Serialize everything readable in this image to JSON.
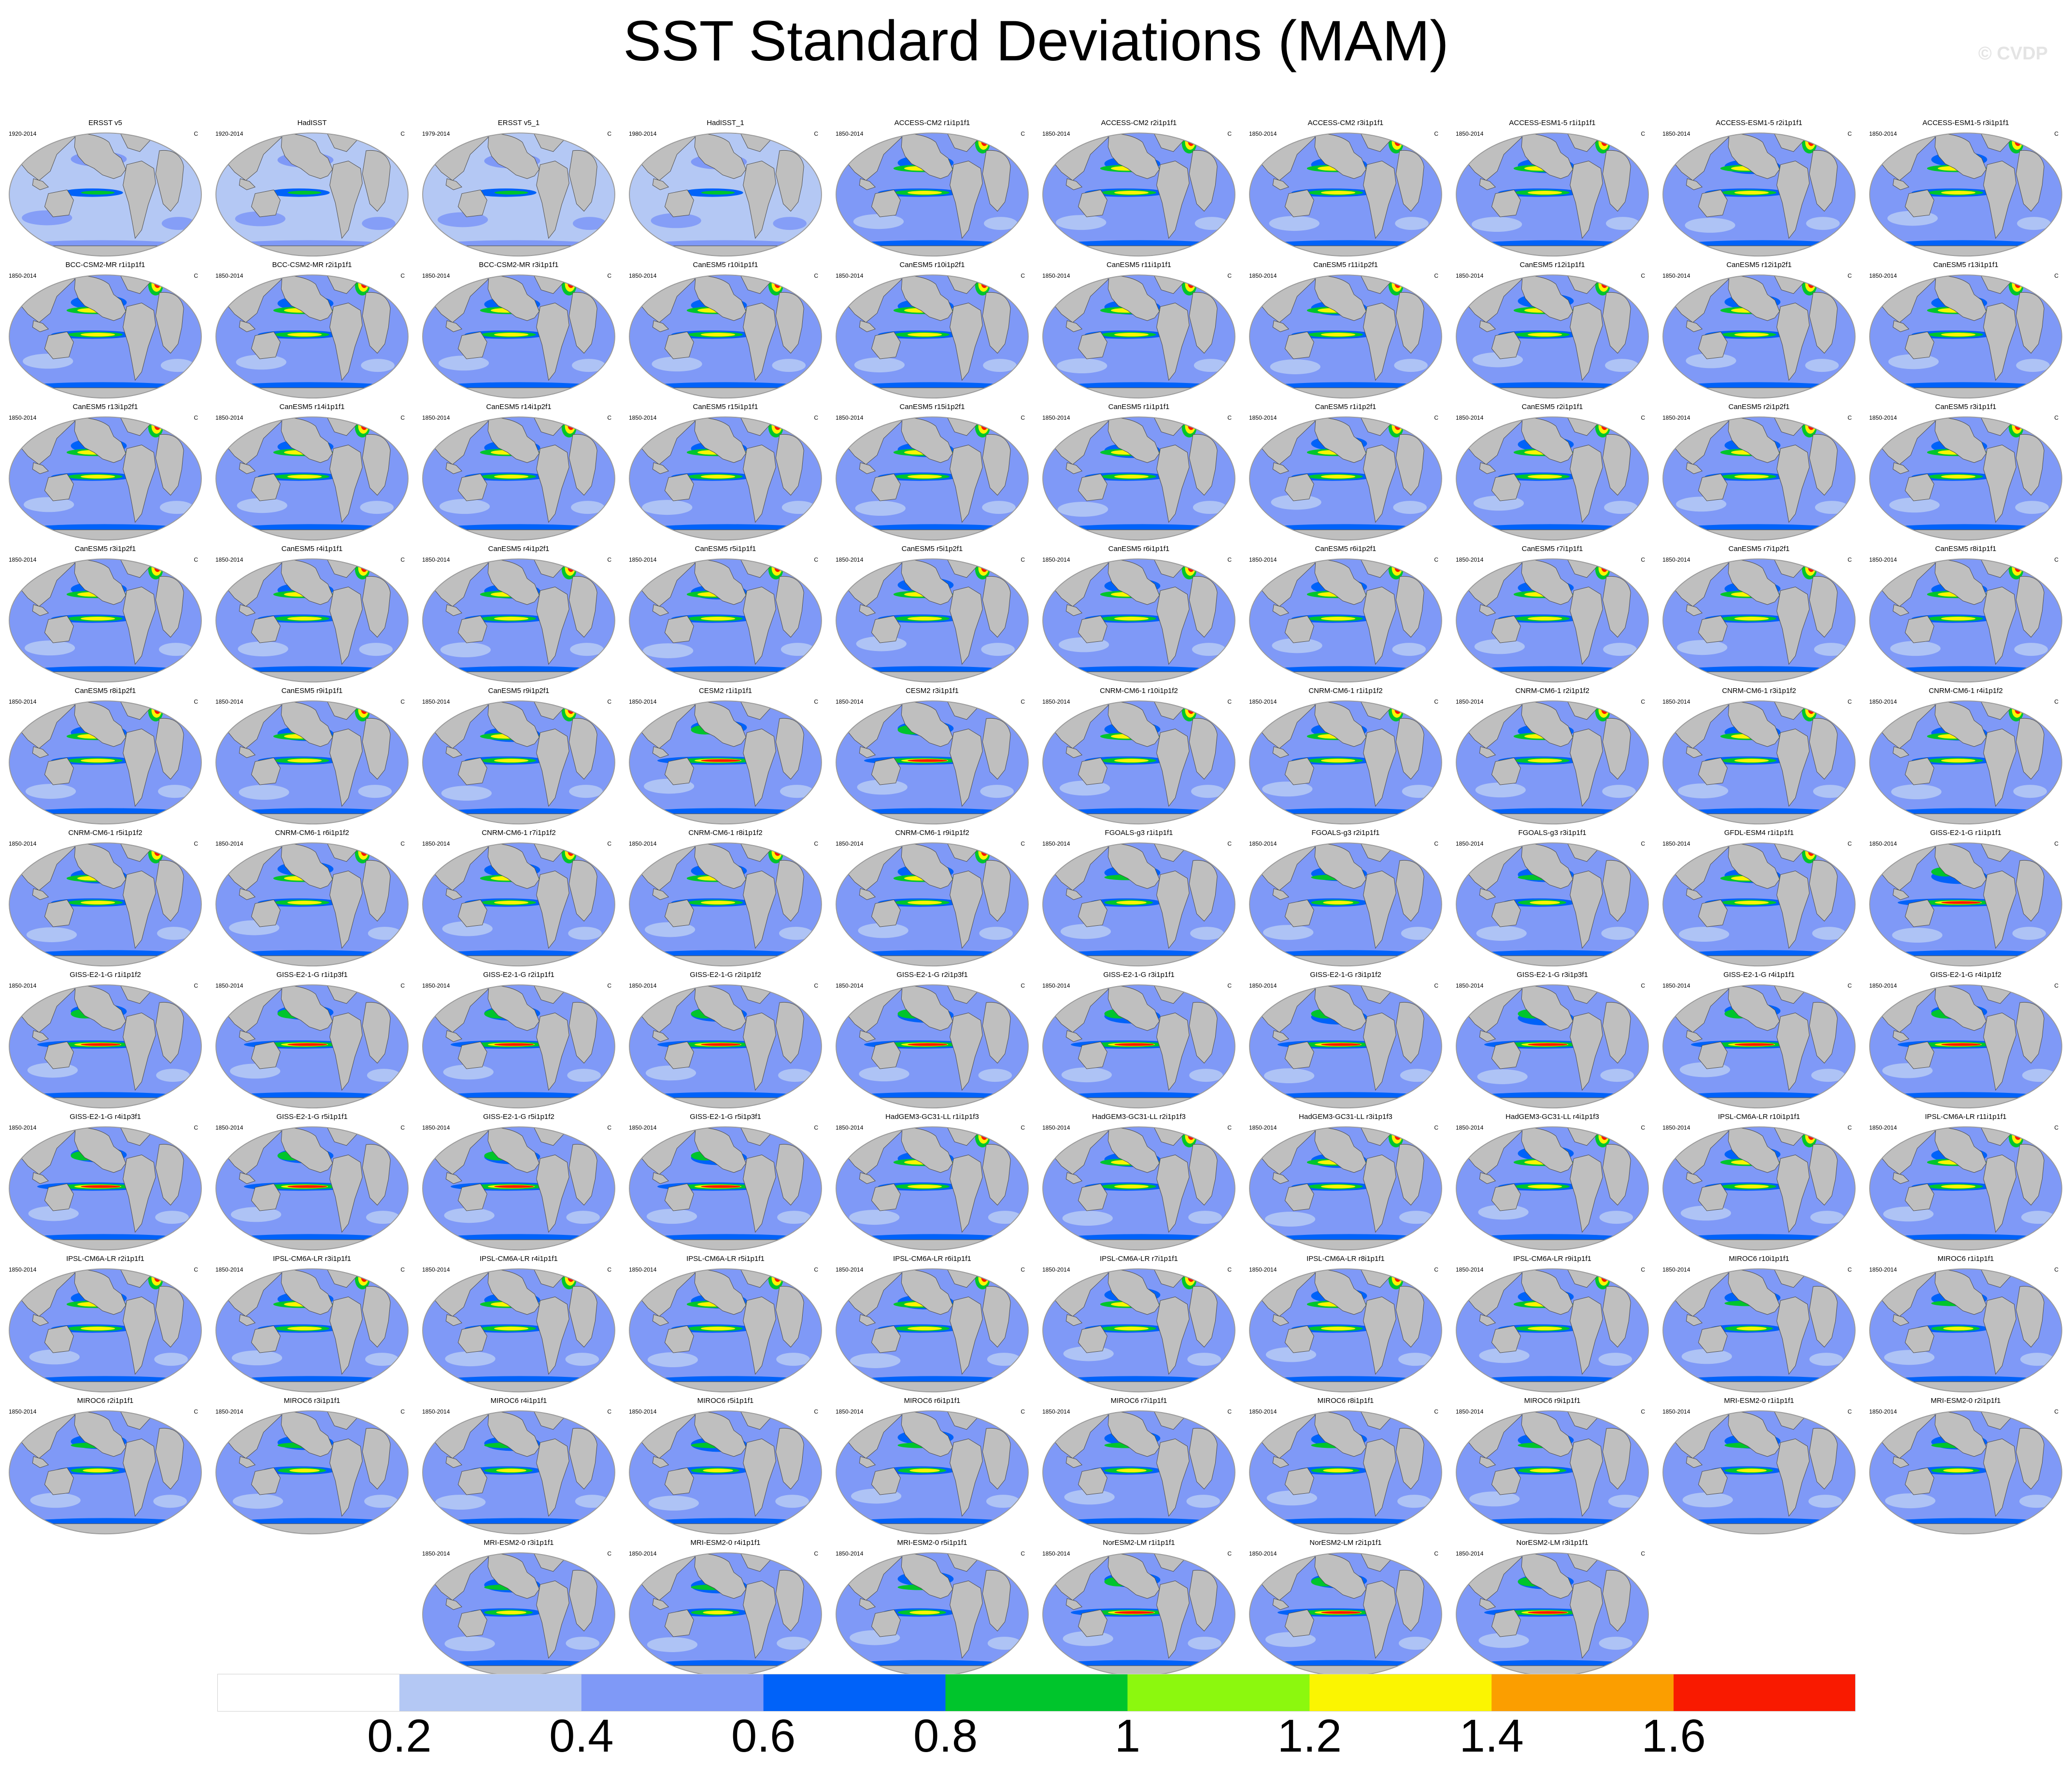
{
  "title": "SST Standard Deviations (MAM)",
  "watermark": "© CVDP",
  "unit": "C",
  "panels": [
    {
      "name": "ERSST v5",
      "years": "1920-2014",
      "style": "obs"
    },
    {
      "name": "HadISST",
      "years": "1920-2014",
      "style": "obs"
    },
    {
      "name": "ERSST v5_1",
      "years": "1979-2014",
      "style": "obs"
    },
    {
      "name": "HadISST_1",
      "years": "1980-2014",
      "style": "obs"
    },
    {
      "name": "ACCESS-CM2 r1i1p1f1",
      "years": "1850-2014",
      "style": "hot"
    },
    {
      "name": "ACCESS-CM2 r2i1p1f1",
      "years": "1850-2014",
      "style": "hot"
    },
    {
      "name": "ACCESS-CM2 r3i1p1f1",
      "years": "1850-2014",
      "style": "hot"
    },
    {
      "name": "ACCESS-ESM1-5 r1i1p1f1",
      "years": "1850-2014",
      "style": "hot"
    },
    {
      "name": "ACCESS-ESM1-5 r2i1p1f1",
      "years": "1850-2014",
      "style": "hot"
    },
    {
      "name": "ACCESS-ESM1-5 r3i1p1f1",
      "years": "1850-2014",
      "style": "hot"
    },
    {
      "name": "BCC-CSM2-MR r1i1p1f1",
      "years": "1850-2014",
      "style": "hot"
    },
    {
      "name": "BCC-CSM2-MR r2i1p1f1",
      "years": "1850-2014",
      "style": "hot"
    },
    {
      "name": "BCC-CSM2-MR r3i1p1f1",
      "years": "1850-2014",
      "style": "hot"
    },
    {
      "name": "CanESM5 r10i1p1f1",
      "years": "1850-2014",
      "style": "hot"
    },
    {
      "name": "CanESM5 r10i1p2f1",
      "years": "1850-2014",
      "style": "hot"
    },
    {
      "name": "CanESM5 r11i1p1f1",
      "years": "1850-2014",
      "style": "hot"
    },
    {
      "name": "CanESM5 r11i1p2f1",
      "years": "1850-2014",
      "style": "hot"
    },
    {
      "name": "CanESM5 r12i1p1f1",
      "years": "1850-2014",
      "style": "hot"
    },
    {
      "name": "CanESM5 r12i1p2f1",
      "years": "1850-2014",
      "style": "hot"
    },
    {
      "name": "CanESM5 r13i1p1f1",
      "years": "1850-2014",
      "style": "hot"
    },
    {
      "name": "CanESM5 r13i1p2f1",
      "years": "1850-2014",
      "style": "hot"
    },
    {
      "name": "CanESM5 r14i1p1f1",
      "years": "1850-2014",
      "style": "hot"
    },
    {
      "name": "CanESM5 r14i1p2f1",
      "years": "1850-2014",
      "style": "hot"
    },
    {
      "name": "CanESM5 r15i1p1f1",
      "years": "1850-2014",
      "style": "hot"
    },
    {
      "name": "CanESM5 r15i1p2f1",
      "years": "1850-2014",
      "style": "hot"
    },
    {
      "name": "CanESM5 r1i1p1f1",
      "years": "1850-2014",
      "style": "hot"
    },
    {
      "name": "CanESM5 r1i1p2f1",
      "years": "1850-2014",
      "style": "hot"
    },
    {
      "name": "CanESM5 r2i1p1f1",
      "years": "1850-2014",
      "style": "hot"
    },
    {
      "name": "CanESM5 r2i1p2f1",
      "years": "1850-2014",
      "style": "hot"
    },
    {
      "name": "CanESM5 r3i1p1f1",
      "years": "1850-2014",
      "style": "hot"
    },
    {
      "name": "CanESM5 r3i1p2f1",
      "years": "1850-2014",
      "style": "hot"
    },
    {
      "name": "CanESM5 r4i1p1f1",
      "years": "1850-2014",
      "style": "hot"
    },
    {
      "name": "CanESM5 r4i1p2f1",
      "years": "1850-2014",
      "style": "hot"
    },
    {
      "name": "CanESM5 r5i1p1f1",
      "years": "1850-2014",
      "style": "hot"
    },
    {
      "name": "CanESM5 r5i1p2f1",
      "years": "1850-2014",
      "style": "hot"
    },
    {
      "name": "CanESM5 r6i1p1f1",
      "years": "1850-2014",
      "style": "hot"
    },
    {
      "name": "CanESM5 r6i1p2f1",
      "years": "1850-2014",
      "style": "hot"
    },
    {
      "name": "CanESM5 r7i1p1f1",
      "years": "1850-2014",
      "style": "hot"
    },
    {
      "name": "CanESM5 r7i1p2f1",
      "years": "1850-2014",
      "style": "hot"
    },
    {
      "name": "CanESM5 r8i1p1f1",
      "years": "1850-2014",
      "style": "hot"
    },
    {
      "name": "CanESM5 r8i1p2f1",
      "years": "1850-2014",
      "style": "hot"
    },
    {
      "name": "CanESM5 r9i1p1f1",
      "years": "1850-2014",
      "style": "hot"
    },
    {
      "name": "CanESM5 r9i1p2f1",
      "years": "1850-2014",
      "style": "hot"
    },
    {
      "name": "CESM2 r1i1p1f1",
      "years": "1850-2014",
      "style": "enso"
    },
    {
      "name": "CESM2 r3i1p1f1",
      "years": "1850-2014",
      "style": "enso"
    },
    {
      "name": "CNRM-CM6-1 r10i1p1f2",
      "years": "1850-2014",
      "style": "hot"
    },
    {
      "name": "CNRM-CM6-1 r1i1p1f2",
      "years": "1850-2014",
      "style": "hot"
    },
    {
      "name": "CNRM-CM6-1 r2i1p1f2",
      "years": "1850-2014",
      "style": "hot"
    },
    {
      "name": "CNRM-CM6-1 r3i1p1f2",
      "years": "1850-2014",
      "style": "hot"
    },
    {
      "name": "CNRM-CM6-1 r4i1p1f2",
      "years": "1850-2014",
      "style": "hot"
    },
    {
      "name": "CNRM-CM6-1 r5i1p1f2",
      "years": "1850-2014",
      "style": "hot"
    },
    {
      "name": "CNRM-CM6-1 r6i1p1f2",
      "years": "1850-2014",
      "style": "hot"
    },
    {
      "name": "CNRM-CM6-1 r7i1p1f2",
      "years": "1850-2014",
      "style": "hot"
    },
    {
      "name": "CNRM-CM6-1 r8i1p1f2",
      "years": "1850-2014",
      "style": "hot"
    },
    {
      "name": "CNRM-CM6-1 r9i1p1f2",
      "years": "1850-2014",
      "style": "hot"
    },
    {
      "name": "FGOALS-g3 r1i1p1f1",
      "years": "1850-2014",
      "style": "mild"
    },
    {
      "name": "FGOALS-g3 r2i1p1f1",
      "years": "1850-2014",
      "style": "mild"
    },
    {
      "name": "FGOALS-g3 r3i1p1f1",
      "years": "1850-2014",
      "style": "mild"
    },
    {
      "name": "GFDL-ESM4 r1i1p1f1",
      "years": "1850-2014",
      "style": "hot"
    },
    {
      "name": "GISS-E2-1-G r1i1p1f1",
      "years": "1850-2014",
      "style": "enso"
    },
    {
      "name": "GISS-E2-1-G r1i1p1f2",
      "years": "1850-2014",
      "style": "enso"
    },
    {
      "name": "GISS-E2-1-G r1i1p3f1",
      "years": "1850-2014",
      "style": "enso"
    },
    {
      "name": "GISS-E2-1-G r2i1p1f1",
      "years": "1850-2014",
      "style": "enso"
    },
    {
      "name": "GISS-E2-1-G r2i1p1f2",
      "years": "1850-2014",
      "style": "enso"
    },
    {
      "name": "GISS-E2-1-G r2i1p3f1",
      "years": "1850-2014",
      "style": "enso"
    },
    {
      "name": "GISS-E2-1-G r3i1p1f1",
      "years": "1850-2014",
      "style": "enso"
    },
    {
      "name": "GISS-E2-1-G r3i1p1f2",
      "years": "1850-2014",
      "style": "enso"
    },
    {
      "name": "GISS-E2-1-G r3i1p3f1",
      "years": "1850-2014",
      "style": "enso"
    },
    {
      "name": "GISS-E2-1-G r4i1p1f1",
      "years": "1850-2014",
      "style": "enso"
    },
    {
      "name": "GISS-E2-1-G r4i1p1f2",
      "years": "1850-2014",
      "style": "enso"
    },
    {
      "name": "GISS-E2-1-G r4i1p3f1",
      "years": "1850-2014",
      "style": "enso"
    },
    {
      "name": "GISS-E2-1-G r5i1p1f1",
      "years": "1850-2014",
      "style": "enso"
    },
    {
      "name": "GISS-E2-1-G r5i1p1f2",
      "years": "1850-2014",
      "style": "enso"
    },
    {
      "name": "GISS-E2-1-G r5i1p3f1",
      "years": "1850-2014",
      "style": "enso"
    },
    {
      "name": "HadGEM3-GC31-LL r1i1p1f3",
      "years": "1850-2014",
      "style": "hot"
    },
    {
      "name": "HadGEM3-GC31-LL r2i1p1f3",
      "years": "1850-2014",
      "style": "hot"
    },
    {
      "name": "HadGEM3-GC31-LL r3i1p1f3",
      "years": "1850-2014",
      "style": "hot"
    },
    {
      "name": "HadGEM3-GC31-LL r4i1p1f3",
      "years": "1850-2014",
      "style": "hot"
    },
    {
      "name": "IPSL-CM6A-LR r10i1p1f1",
      "years": "1850-2014",
      "style": "hot"
    },
    {
      "name": "IPSL-CM6A-LR r11i1p1f1",
      "years": "1850-2014",
      "style": "hot"
    },
    {
      "name": "IPSL-CM6A-LR r2i1p1f1",
      "years": "1850-2014",
      "style": "hot"
    },
    {
      "name": "IPSL-CM6A-LR r3i1p1f1",
      "years": "1850-2014",
      "style": "hot"
    },
    {
      "name": "IPSL-CM6A-LR r4i1p1f1",
      "years": "1850-2014",
      "style": "hot"
    },
    {
      "name": "IPSL-CM6A-LR r5i1p1f1",
      "years": "1850-2014",
      "style": "hot"
    },
    {
      "name": "IPSL-CM6A-LR r6i1p1f1",
      "years": "1850-2014",
      "style": "hot"
    },
    {
      "name": "IPSL-CM6A-LR r7i1p1f1",
      "years": "1850-2014",
      "style": "hot"
    },
    {
      "name": "IPSL-CM6A-LR r8i1p1f1",
      "years": "1850-2014",
      "style": "hot"
    },
    {
      "name": "IPSL-CM6A-LR r9i1p1f1",
      "years": "1850-2014",
      "style": "hot"
    },
    {
      "name": "MIROC6 r10i1p1f1",
      "years": "1850-2014",
      "style": "mild"
    },
    {
      "name": "MIROC6 r1i1p1f1",
      "years": "1850-2014",
      "style": "mild"
    },
    {
      "name": "MIROC6 r2i1p1f1",
      "years": "1850-2014",
      "style": "mild"
    },
    {
      "name": "MIROC6 r3i1p1f1",
      "years": "1850-2014",
      "style": "mild"
    },
    {
      "name": "MIROC6 r4i1p1f1",
      "years": "1850-2014",
      "style": "mild"
    },
    {
      "name": "MIROC6 r5i1p1f1",
      "years": "1850-2014",
      "style": "mild"
    },
    {
      "name": "MIROC6 r6i1p1f1",
      "years": "1850-2014",
      "style": "mild"
    },
    {
      "name": "MIROC6 r7i1p1f1",
      "years": "1850-2014",
      "style": "mild"
    },
    {
      "name": "MIROC6 r8i1p1f1",
      "years": "1850-2014",
      "style": "mild"
    },
    {
      "name": "MIROC6 r9i1p1f1",
      "years": "1850-2014",
      "style": "mild"
    },
    {
      "name": "MRI-ESM2-0 r1i1p1f1",
      "years": "1850-2014",
      "style": "mild"
    },
    {
      "name": "MRI-ESM2-0 r2i1p1f1",
      "years": "1850-2014",
      "style": "mild"
    },
    {
      "name": "MRI-ESM2-0 r3i1p1f1",
      "years": "1850-2014",
      "style": "mild"
    },
    {
      "name": "MRI-ESM2-0 r4i1p1f1",
      "years": "1850-2014",
      "style": "mild"
    },
    {
      "name": "MRI-ESM2-0 r5i1p1f1",
      "years": "1850-2014",
      "style": "mild"
    },
    {
      "name": "NorESM2-LM r1i1p1f1",
      "years": "1850-2014",
      "style": "enso"
    },
    {
      "name": "NorESM2-LM r2i1p1f1",
      "years": "1850-2014",
      "style": "enso"
    },
    {
      "name": "NorESM2-LM r3i1p1f1",
      "years": "1850-2014",
      "style": "enso"
    }
  ],
  "colorbar": {
    "levels": [
      "0.2",
      "0.4",
      "0.6",
      "0.8",
      "1",
      "1.2",
      "1.4",
      "1.6"
    ],
    "colors": [
      "#ffffff",
      "#b4c8f4",
      "#7f99f7",
      "#0062f9",
      "#00c52c",
      "#8cf80e",
      "#fbf501",
      "#fb9e00",
      "#f91a00"
    ]
  },
  "map_colors": {
    "land": "#bfbfbf",
    "coast": "#4a4a4a",
    "outline": "#9a9a9a"
  }
}
